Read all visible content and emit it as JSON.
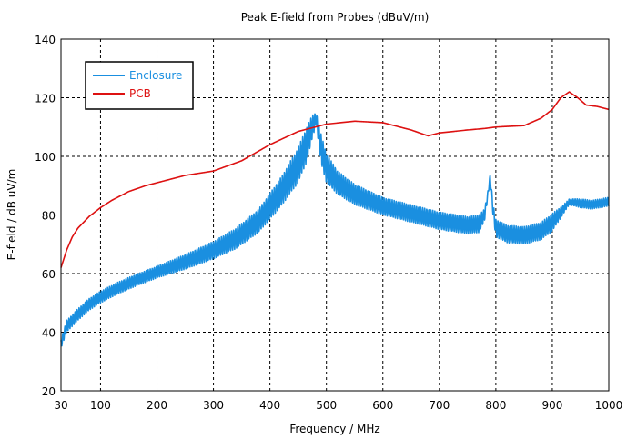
{
  "chart_data": {
    "type": "line",
    "title": "Peak E-field from Probes (dBuV/m)",
    "xlabel": "Frequency / MHz",
    "ylabel": "E-field / dB uV/m",
    "xlim": [
      30,
      1000
    ],
    "ylim": [
      20,
      140
    ],
    "x_ticks": [
      30,
      100,
      200,
      300,
      400,
      500,
      600,
      700,
      800,
      900,
      1000
    ],
    "y_ticks": [
      20,
      40,
      60,
      80,
      100,
      120,
      140
    ],
    "grid": true,
    "grid_style": "dashed",
    "legend_position": "top-left",
    "series": [
      {
        "name": "Enclosure",
        "color": "#1a8fe0",
        "x": [
          30,
          40,
          60,
          80,
          100,
          130,
          160,
          200,
          250,
          300,
          340,
          380,
          420,
          450,
          465,
          475,
          482,
          490,
          500,
          520,
          550,
          600,
          650,
          700,
          750,
          770,
          780,
          785,
          790,
          795,
          800,
          820,
          850,
          880,
          900,
          920,
          930,
          950,
          970,
          1000
        ],
        "values": [
          36,
          42,
          46,
          49.5,
          52,
          55,
          57.5,
          60.5,
          64,
          68,
          72,
          78,
          88,
          97,
          104,
          110,
          113,
          103,
          96,
          91,
          87,
          83,
          80.5,
          78,
          76.5,
          77,
          80,
          86,
          93,
          82,
          75.5,
          73.5,
          73,
          74.5,
          77.5,
          82,
          84.5,
          84,
          83.5,
          84.5
        ],
        "ripple": [
          1.5,
          2,
          2,
          2,
          2,
          2,
          2,
          2,
          2.5,
          3,
          3.5,
          4,
          5,
          6,
          6,
          4,
          2,
          5,
          5,
          4,
          3.5,
          3,
          3,
          3,
          3,
          3,
          2,
          1,
          1,
          2,
          3,
          3,
          3,
          3,
          3,
          1.5,
          1,
          1.5,
          1.5,
          1.5
        ]
      },
      {
        "name": "PCB",
        "color": "#dd1111",
        "x": [
          30,
          40,
          50,
          60,
          70,
          80,
          100,
          120,
          150,
          180,
          200,
          250,
          300,
          350,
          400,
          450,
          500,
          550,
          600,
          650,
          680,
          700,
          750,
          780,
          800,
          850,
          880,
          900,
          915,
          930,
          945,
          960,
          980,
          1000
        ],
        "values": [
          62,
          68,
          72.5,
          75.5,
          77.5,
          79.5,
          82.5,
          85,
          88,
          90,
          91,
          93.5,
          95,
          98.5,
          104,
          108.5,
          111,
          112,
          111.5,
          109,
          107,
          108,
          109,
          109.5,
          110,
          110.5,
          113,
          116,
          120,
          122,
          120,
          117.5,
          117,
          116
        ]
      }
    ]
  }
}
